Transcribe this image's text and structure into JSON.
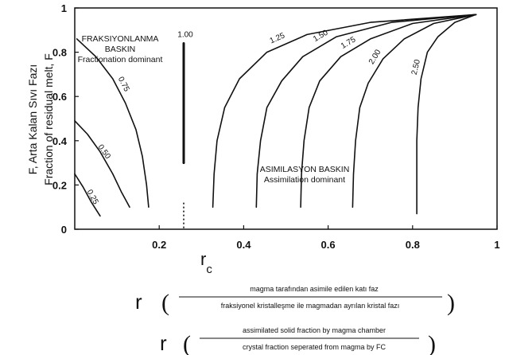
{
  "chart_data": {
    "type": "line",
    "title": "",
    "ylabel_line1": "F, Arta Kalan Sıvı Fazı",
    "ylabel_line2": "Fraction of residual melt, F",
    "xlabel_main": "r",
    "xlabel_sub": "c",
    "xlim": [
      0,
      1
    ],
    "ylim": [
      0,
      1
    ],
    "x_ticks": [
      "0.2",
      "0.4",
      "0.6",
      "0.8",
      "1"
    ],
    "y_ticks": [
      "0",
      "0.2",
      "0.4",
      "0.6",
      "0.8",
      "1"
    ],
    "series": [
      {
        "name": "0.25",
        "points": [
          [
            0.0,
            0.25
          ],
          [
            0.02,
            0.19
          ],
          [
            0.04,
            0.12
          ],
          [
            0.06,
            0.06
          ]
        ]
      },
      {
        "name": "0.50",
        "points": [
          [
            0.0,
            0.49
          ],
          [
            0.03,
            0.43
          ],
          [
            0.06,
            0.35
          ],
          [
            0.09,
            0.25
          ],
          [
            0.11,
            0.17
          ],
          [
            0.13,
            0.1
          ]
        ]
      },
      {
        "name": "0.75",
        "points": [
          [
            0.005,
            0.86
          ],
          [
            0.05,
            0.78
          ],
          [
            0.09,
            0.68
          ],
          [
            0.12,
            0.57
          ],
          [
            0.145,
            0.45
          ],
          [
            0.16,
            0.33
          ],
          [
            0.17,
            0.2
          ],
          [
            0.175,
            0.1
          ]
        ]
      },
      {
        "name": "1.00",
        "points": [
          [
            0.258,
            0.84
          ],
          [
            0.258,
            0.3
          ]
        ]
      },
      {
        "name": "1.25",
        "points": [
          [
            0.95,
            0.97
          ],
          [
            0.7,
            0.935
          ],
          [
            0.55,
            0.88
          ],
          [
            0.455,
            0.8
          ],
          [
            0.39,
            0.68
          ],
          [
            0.355,
            0.55
          ],
          [
            0.337,
            0.4
          ],
          [
            0.33,
            0.25
          ],
          [
            0.327,
            0.1
          ]
        ]
      },
      {
        "name": "1.50",
        "points": [
          [
            0.95,
            0.97
          ],
          [
            0.75,
            0.935
          ],
          [
            0.62,
            0.87
          ],
          [
            0.54,
            0.78
          ],
          [
            0.49,
            0.67
          ],
          [
            0.455,
            0.55
          ],
          [
            0.44,
            0.4
          ],
          [
            0.432,
            0.25
          ],
          [
            0.43,
            0.1
          ]
        ]
      },
      {
        "name": "1.75",
        "points": [
          [
            0.95,
            0.97
          ],
          [
            0.8,
            0.93
          ],
          [
            0.7,
            0.86
          ],
          [
            0.63,
            0.78
          ],
          [
            0.58,
            0.67
          ],
          [
            0.555,
            0.55
          ],
          [
            0.543,
            0.4
          ],
          [
            0.537,
            0.25
          ],
          [
            0.535,
            0.1
          ]
        ]
      },
      {
        "name": "2.00",
        "points": [
          [
            0.95,
            0.97
          ],
          [
            0.85,
            0.93
          ],
          [
            0.78,
            0.86
          ],
          [
            0.73,
            0.77
          ],
          [
            0.695,
            0.66
          ],
          [
            0.675,
            0.55
          ],
          [
            0.665,
            0.4
          ],
          [
            0.66,
            0.25
          ],
          [
            0.658,
            0.1
          ]
        ]
      },
      {
        "name": "2.50",
        "points": [
          [
            0.95,
            0.97
          ],
          [
            0.9,
            0.935
          ],
          [
            0.86,
            0.87
          ],
          [
            0.835,
            0.8
          ],
          [
            0.82,
            0.68
          ],
          [
            0.813,
            0.55
          ],
          [
            0.81,
            0.4
          ],
          [
            0.81,
            0.25
          ],
          [
            0.81,
            0.07
          ]
        ]
      }
    ],
    "rc_marker": {
      "x": 0.258,
      "y_from": 0.0,
      "y_to": 0.12
    },
    "annotations": {
      "fractionation_tr_1": "FRAKSIYONLANMA",
      "fractionation_tr_2": "BASKIN",
      "fractionation_en": "Fractionation dominant",
      "assimilation_tr": "ASIMILASYON BASKIN",
      "assimilation_en": "Assimilation dominant"
    },
    "grid": false,
    "legend": "none"
  },
  "definition": {
    "symbol": "r",
    "tr_numerator": "magma tarafından asimile edilen katı faz",
    "tr_denominator": "fraksiyonel kristalleşme ile magmadan ayrılan kristal fazı",
    "en_numerator": "assimilated solid fraction by magma chamber",
    "en_denominator": "crystal fraction seperated from magma by FC"
  }
}
